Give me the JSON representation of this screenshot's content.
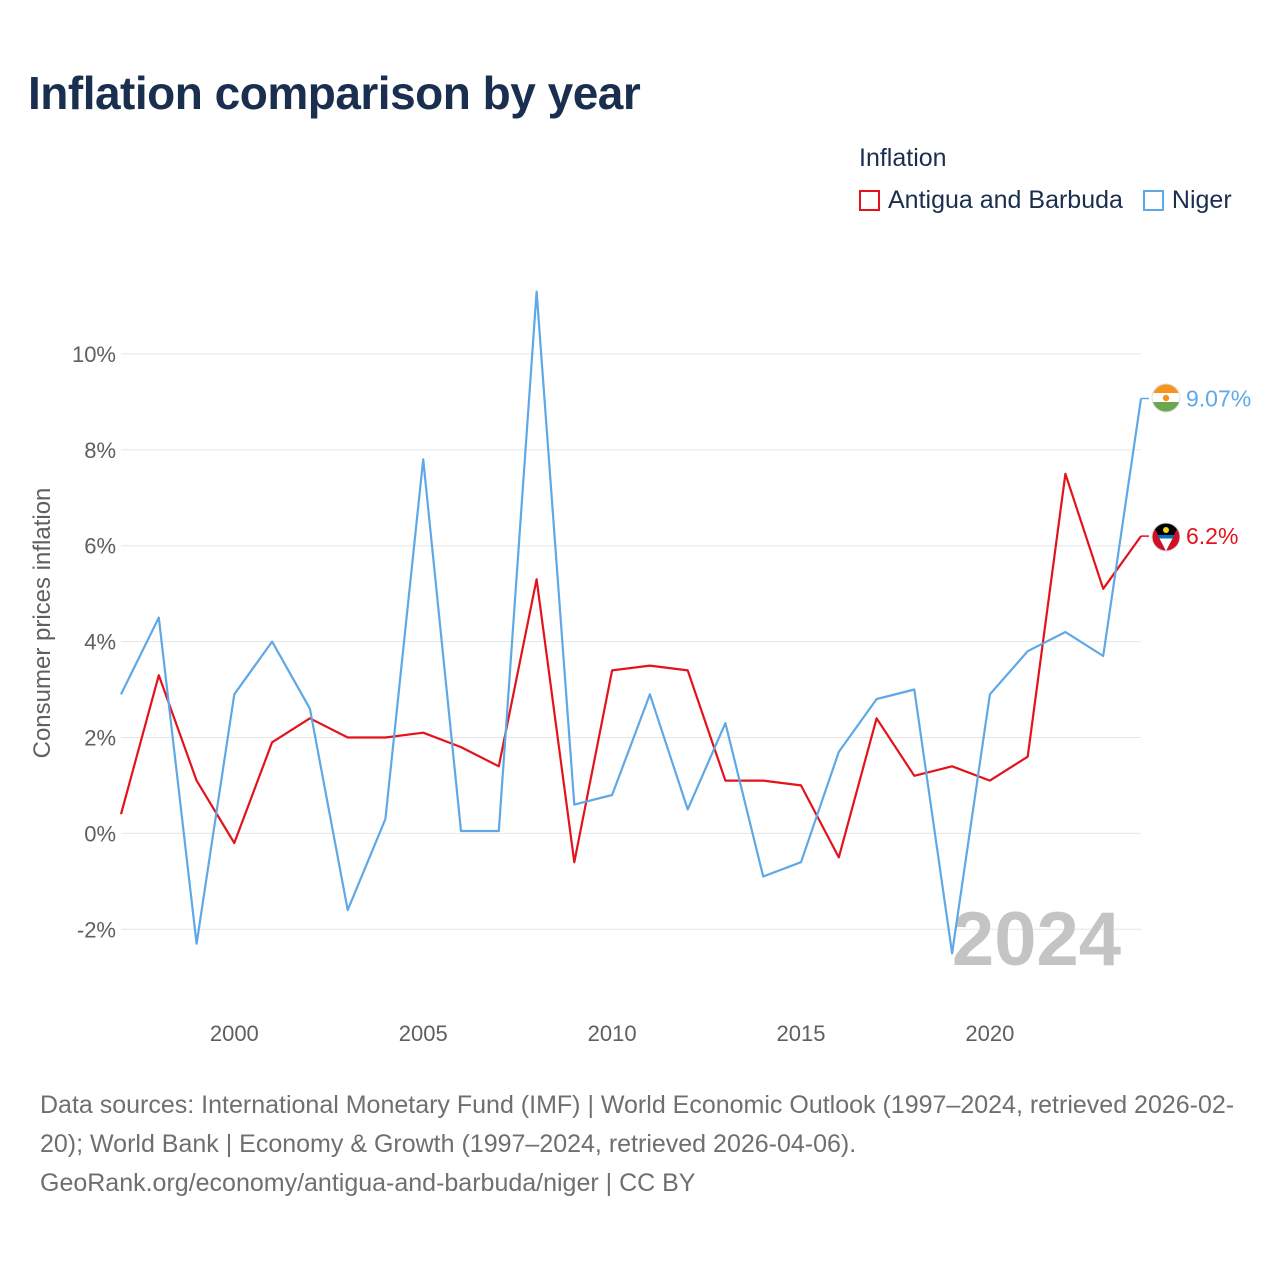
{
  "title": "Inflation comparison by year",
  "legend": {
    "title": "Inflation",
    "items": [
      {
        "label": "Antigua and Barbuda",
        "color": "#e3131b"
      },
      {
        "label": "Niger",
        "color": "#5ea8e6"
      }
    ]
  },
  "footer": {
    "sources": "Data sources: International Monetary Fund (IMF) | World Economic Outlook (1997–2024, retrieved 2026-02-20); World Bank | Economy & Growth (1997–2024, retrieved 2026-04-06).",
    "credit": "GeoRank.org/economy/antigua-and-barbuda/niger | CC BY"
  },
  "chart_data": {
    "type": "line",
    "title": "Inflation comparison by year",
    "xlabel": "",
    "ylabel": "Consumer prices inflation",
    "x": [
      1997,
      1998,
      1999,
      2000,
      2001,
      2002,
      2003,
      2004,
      2005,
      2006,
      2007,
      2008,
      2009,
      2010,
      2011,
      2012,
      2013,
      2014,
      2015,
      2016,
      2017,
      2018,
      2019,
      2020,
      2021,
      2022,
      2023,
      2024
    ],
    "series": [
      {
        "name": "Antigua and Barbuda",
        "color": "#e3131b",
        "values": [
          0.4,
          3.3,
          1.1,
          -0.2,
          1.9,
          2.4,
          2.0,
          2.0,
          2.1,
          1.8,
          1.4,
          5.3,
          -0.6,
          3.4,
          3.5,
          3.4,
          1.1,
          1.1,
          1.0,
          -0.5,
          2.4,
          1.2,
          1.4,
          1.1,
          1.6,
          7.5,
          5.1,
          6.2
        ],
        "end_label": "6.2%"
      },
      {
        "name": "Niger",
        "color": "#5ea8e6",
        "values": [
          2.9,
          4.5,
          -2.3,
          2.9,
          4.0,
          2.6,
          -1.6,
          0.3,
          7.8,
          0.05,
          0.05,
          11.3,
          0.6,
          0.8,
          2.9,
          0.5,
          2.3,
          -0.9,
          -0.6,
          1.7,
          2.8,
          3.0,
          -2.5,
          2.9,
          3.8,
          4.2,
          3.7,
          9.07
        ],
        "end_label": "9.07%"
      }
    ],
    "xlim": [
      1997,
      2024
    ],
    "ylim": [
      -3.6,
      12.0
    ],
    "yticks": [
      -2,
      0,
      2,
      4,
      6,
      8,
      10
    ],
    "ytick_labels": [
      "-2%",
      "0%",
      "2%",
      "4%",
      "6%",
      "8%",
      "10%"
    ],
    "xticks": [
      2000,
      2005,
      2010,
      2015,
      2020
    ],
    "xtick_labels": [
      "2000",
      "2005",
      "2010",
      "2015",
      "2020"
    ],
    "grid": true,
    "year_label": "2024"
  }
}
